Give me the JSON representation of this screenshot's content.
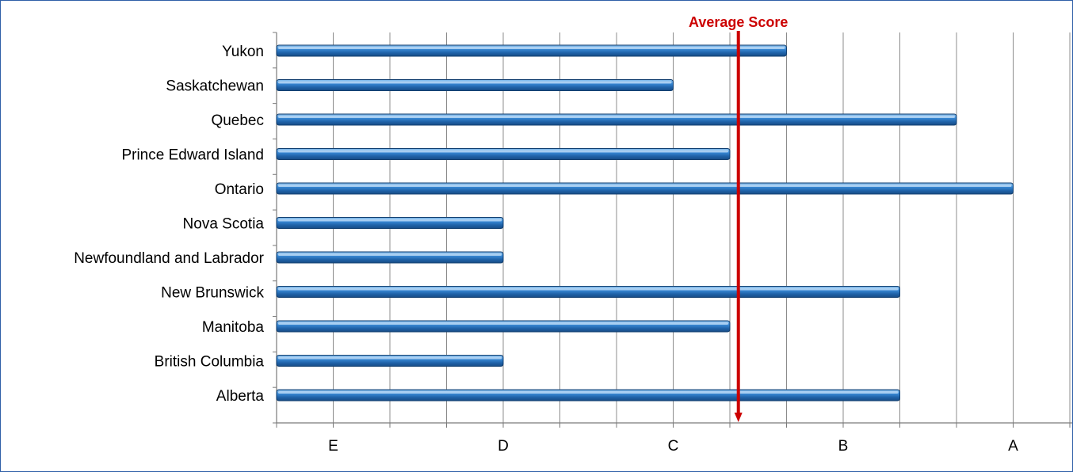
{
  "chart_data": {
    "type": "bar",
    "orientation": "horizontal",
    "categories": [
      "Yukon",
      "Saskatchewan",
      "Quebec",
      "Prince Edward Island",
      "Ontario",
      "Nova Scotia",
      "Newfoundland and Labrador",
      "New Brunswick",
      "Manitoba",
      "British Columbia",
      "Alberta"
    ],
    "values": [
      9,
      7,
      12,
      8,
      13,
      4,
      4,
      11,
      8,
      4,
      11
    ],
    "x_ticks": [
      {
        "label": "E",
        "value": 1
      },
      {
        "label": "D",
        "value": 4
      },
      {
        "label": "C",
        "value": 7
      },
      {
        "label": "B",
        "value": 10
      },
      {
        "label": "A",
        "value": 13
      }
    ],
    "xlim": [
      0,
      14
    ],
    "grid": true,
    "reference_line": {
      "label": "Average Score",
      "value": 8.15,
      "color": "#cc0000"
    },
    "bar_color": "#1f6fb8"
  }
}
